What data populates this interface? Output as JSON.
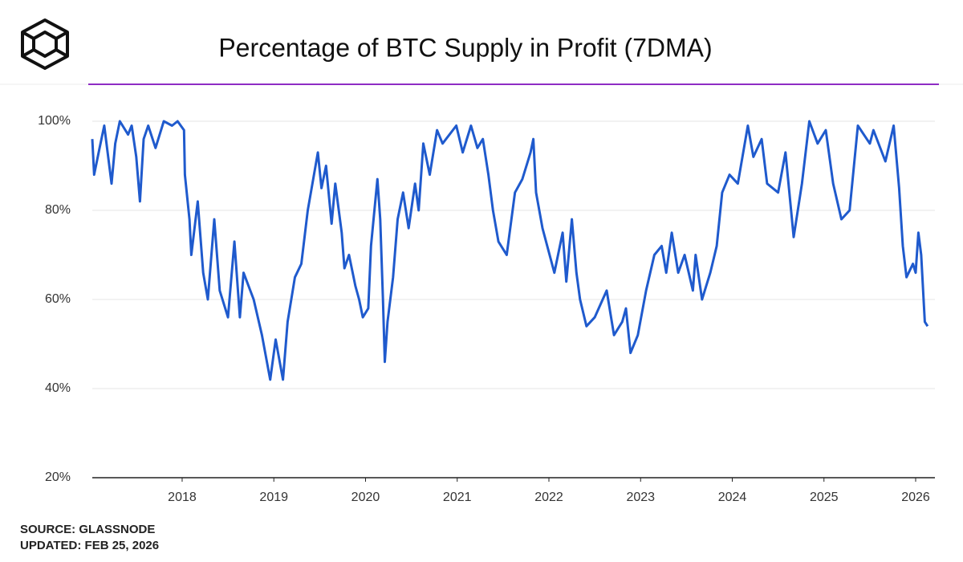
{
  "chart_data": {
    "type": "line",
    "title": "Percentage of BTC Supply in Profit (7DMA)",
    "source": "SOURCE: GLASSNODE",
    "updated": "UPDATED: FEB 25, 2026",
    "x": [
      2017.02,
      2017.04,
      2017.1,
      2017.15,
      2017.23,
      2017.27,
      2017.32,
      2017.41,
      2017.45,
      2017.5,
      2017.54,
      2017.58,
      2017.63,
      2017.71,
      2017.8,
      2017.89,
      2017.95,
      2018.02,
      2018.03,
      2018.08,
      2018.1,
      2018.17,
      2018.23,
      2018.28,
      2018.35,
      2018.41,
      2018.5,
      2018.57,
      2018.63,
      2018.67,
      2018.78,
      2018.87,
      2018.96,
      2019.02,
      2019.1,
      2019.15,
      2019.23,
      2019.3,
      2019.37,
      2019.48,
      2019.52,
      2019.57,
      2019.63,
      2019.67,
      2019.74,
      2019.77,
      2019.82,
      2019.89,
      2019.93,
      2019.97,
      2020.03,
      2020.06,
      2020.13,
      2020.16,
      2020.19,
      2020.21,
      2020.24,
      2020.3,
      2020.35,
      2020.41,
      2020.47,
      2020.54,
      2020.58,
      2020.63,
      2020.7,
      2020.78,
      2020.84,
      2020.99,
      2021.06,
      2021.15,
      2021.22,
      2021.28,
      2021.34,
      2021.39,
      2021.45,
      2021.54,
      2021.63,
      2021.71,
      2021.8,
      2021.83,
      2021.86,
      2021.93,
      2022.06,
      2022.15,
      2022.19,
      2022.25,
      2022.3,
      2022.34,
      2022.41,
      2022.5,
      2022.63,
      2022.71,
      2022.8,
      2022.84,
      2022.89,
      2022.97,
      2023.06,
      2023.15,
      2023.23,
      2023.28,
      2023.34,
      2023.41,
      2023.48,
      2023.57,
      2023.6,
      2023.67,
      2023.76,
      2023.83,
      2023.89,
      2023.97,
      2024.06,
      2024.17,
      2024.23,
      2024.32,
      2024.38,
      2024.5,
      2024.58,
      2024.67,
      2024.76,
      2024.84,
      2024.93,
      2025.02,
      2025.1,
      2025.19,
      2025.28,
      2025.37,
      2025.5,
      2025.54,
      2025.67,
      2025.76,
      2025.82,
      2025.86,
      2025.9,
      2025.97,
      2026.0,
      2026.03,
      2026.06,
      2026.1,
      2026.13
    ],
    "series": [
      {
        "name": "Supply in Profit",
        "color": "#1f5acd",
        "values": [
          96,
          88,
          94,
          99,
          86,
          95,
          100,
          97,
          99,
          92,
          82,
          96,
          99,
          94,
          100,
          99,
          100,
          98,
          88,
          78,
          70,
          82,
          66,
          60,
          78,
          62,
          56,
          73,
          56,
          66,
          60,
          52,
          42,
          51,
          42,
          55,
          65,
          68,
          80,
          93,
          85,
          90,
          77,
          86,
          75,
          67,
          70,
          63,
          60,
          56,
          58,
          72,
          87,
          78,
          60,
          46,
          55,
          65,
          78,
          84,
          76,
          86,
          80,
          95,
          88,
          98,
          95,
          99,
          93,
          99,
          94,
          96,
          88,
          80,
          73,
          70,
          84,
          87,
          93,
          96,
          84,
          76,
          66,
          75,
          64,
          78,
          66,
          60,
          54,
          56,
          62,
          52,
          55,
          58,
          48,
          52,
          62,
          70,
          72,
          66,
          75,
          66,
          70,
          62,
          70,
          60,
          66,
          72,
          84,
          88,
          86,
          99,
          92,
          96,
          86,
          84,
          93,
          74,
          86,
          100,
          95,
          98,
          86,
          78,
          80,
          99,
          95,
          98,
          91,
          99,
          85,
          72,
          65,
          68,
          66,
          75,
          70,
          55,
          54
        ]
      }
    ],
    "xlim": [
      2017.02,
      2026.21
    ],
    "xticks": [
      2018,
      2019,
      2020,
      2021,
      2022,
      2023,
      2024,
      2025,
      2026
    ],
    "ylim": [
      20,
      100
    ],
    "yticks": [
      {
        "value": 20,
        "label": "20%"
      },
      {
        "value": 40,
        "label": "40%"
      },
      {
        "value": 60,
        "label": "60%"
      },
      {
        "value": 80,
        "label": "80%"
      },
      {
        "value": 100,
        "label": "100%"
      }
    ],
    "grid": true
  }
}
